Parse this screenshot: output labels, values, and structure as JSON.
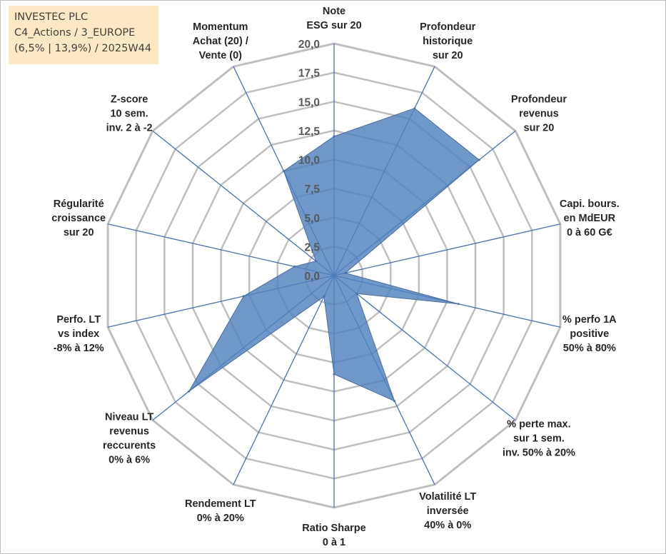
{
  "header": {
    "lines": [
      "INVESTEC PLC",
      "C4_Actions / 3_EUROPE",
      "(6,5% | 13,9%) / 2025W44"
    ]
  },
  "chart_data": {
    "type": "radar",
    "rmin": 0,
    "rmax": 20,
    "tick_step": 2.5,
    "tick_labels": [
      "0,0",
      "2,5",
      "5,0",
      "7,5",
      "10,0",
      "12,5",
      "15,0",
      "17,5",
      "20,0"
    ],
    "axes": [
      {
        "label": [
          "Note",
          "ESG sur 20"
        ],
        "value": 12.0
      },
      {
        "label": [
          "Profondeur",
          "historique",
          "sur 20"
        ],
        "value": 16.0
      },
      {
        "label": [
          "Profondeur",
          "revenus",
          "sur 20"
        ],
        "value": 16.0
      },
      {
        "label": [
          "Capi. bours.",
          "en MdEUR",
          "0 à 60 G€"
        ],
        "value": 1.0
      },
      {
        "label": [
          "% perfo 1A",
          "positive",
          "50% à 80%"
        ],
        "value": 11.0
      },
      {
        "label": [
          "% perte max.",
          "sur 1 sem.",
          "inv. 50% à 20%"
        ],
        "value": 2.5
      },
      {
        "label": [
          "Volatilité LT",
          "inversée",
          "40% à 0%"
        ],
        "value": 12.0
      },
      {
        "label": [
          "Ratio Sharpe",
          "0 à 1"
        ],
        "value": 8.5
      },
      {
        "label": [
          "Rendement LT",
          "0% à 20%"
        ],
        "value": 2.0
      },
      {
        "label": [
          "Niveau LT",
          "revenus",
          "reccurents",
          "0% à 6%"
        ],
        "value": 16.0
      },
      {
        "label": [
          "Perfo. LT",
          "vs index",
          "-8% à 12%"
        ],
        "value": 8.0
      },
      {
        "label": [
          "Régularité",
          "croissance",
          "sur 20"
        ],
        "value": 3.5
      },
      {
        "label": [
          "Z-score",
          "10 sem.",
          "inv. 2 à -2"
        ],
        "value": 2.0
      },
      {
        "label": [
          "Momentum",
          "Achat (20) /",
          "Vente (0)"
        ],
        "value": 10.0
      }
    ],
    "colors": {
      "fill": "#4f81bd",
      "stroke": "#4a6fa8",
      "spoke": "#4472c4",
      "grid": "#bfbfbf"
    }
  }
}
